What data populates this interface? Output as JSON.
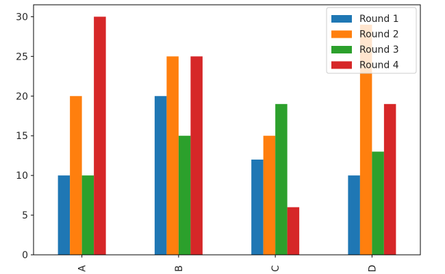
{
  "chart_data": {
    "type": "bar",
    "categories": [
      "A",
      "B",
      "C",
      "D"
    ],
    "series": [
      {
        "name": "Round 1",
        "color": "#1f77b4",
        "values": [
          10,
          20,
          12,
          10
        ]
      },
      {
        "name": "Round 2",
        "color": "#ff7f0e",
        "values": [
          20,
          25,
          15,
          29
        ]
      },
      {
        "name": "Round 3",
        "color": "#2ca02c",
        "values": [
          10,
          15,
          19,
          13
        ]
      },
      {
        "name": "Round 4",
        "color": "#d62728",
        "values": [
          30,
          25,
          6,
          19
        ]
      }
    ],
    "title": "",
    "xlabel": "",
    "ylabel": "",
    "ylim": [
      0,
      31.5
    ],
    "yticks": [
      0,
      5,
      10,
      15,
      20,
      25,
      30
    ],
    "xtick_rotation": "vertical",
    "grid": false,
    "legend_position": "top-right"
  }
}
